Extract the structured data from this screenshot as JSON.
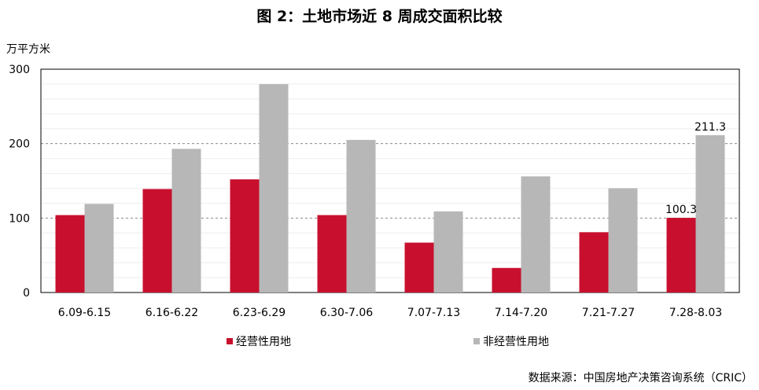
{
  "title": "图 2：土地市场近 8 周成交面积比较",
  "unit_label": "万平方米",
  "source": "数据来源：中国房地产决策咨询系统（CRIC）",
  "colors": {
    "series1": "#c8102e",
    "series2": "#b7b7b7"
  },
  "chart_data": {
    "type": "bar",
    "categories": [
      "6.09-6.15",
      "6.16-6.22",
      "6.23-6.29",
      "6.30-7.06",
      "7.07-7.13",
      "7.14-7.20",
      "7.21-7.27",
      "7.28-8.03"
    ],
    "series": [
      {
        "name": "经营性用地",
        "values": [
          104,
          139,
          152,
          104,
          67,
          33,
          81,
          100.3
        ]
      },
      {
        "name": "非经营性用地",
        "values": [
          119,
          193,
          280,
          205,
          109,
          156,
          140,
          211.3
        ]
      }
    ],
    "data_labels": [
      {
        "series": 0,
        "index": 7,
        "text": "100.3"
      },
      {
        "series": 1,
        "index": 7,
        "text": "211.3"
      }
    ],
    "ylim": [
      0,
      300
    ],
    "yticks": [
      0,
      100,
      200,
      300
    ],
    "legend": "bottom",
    "grid": true
  }
}
